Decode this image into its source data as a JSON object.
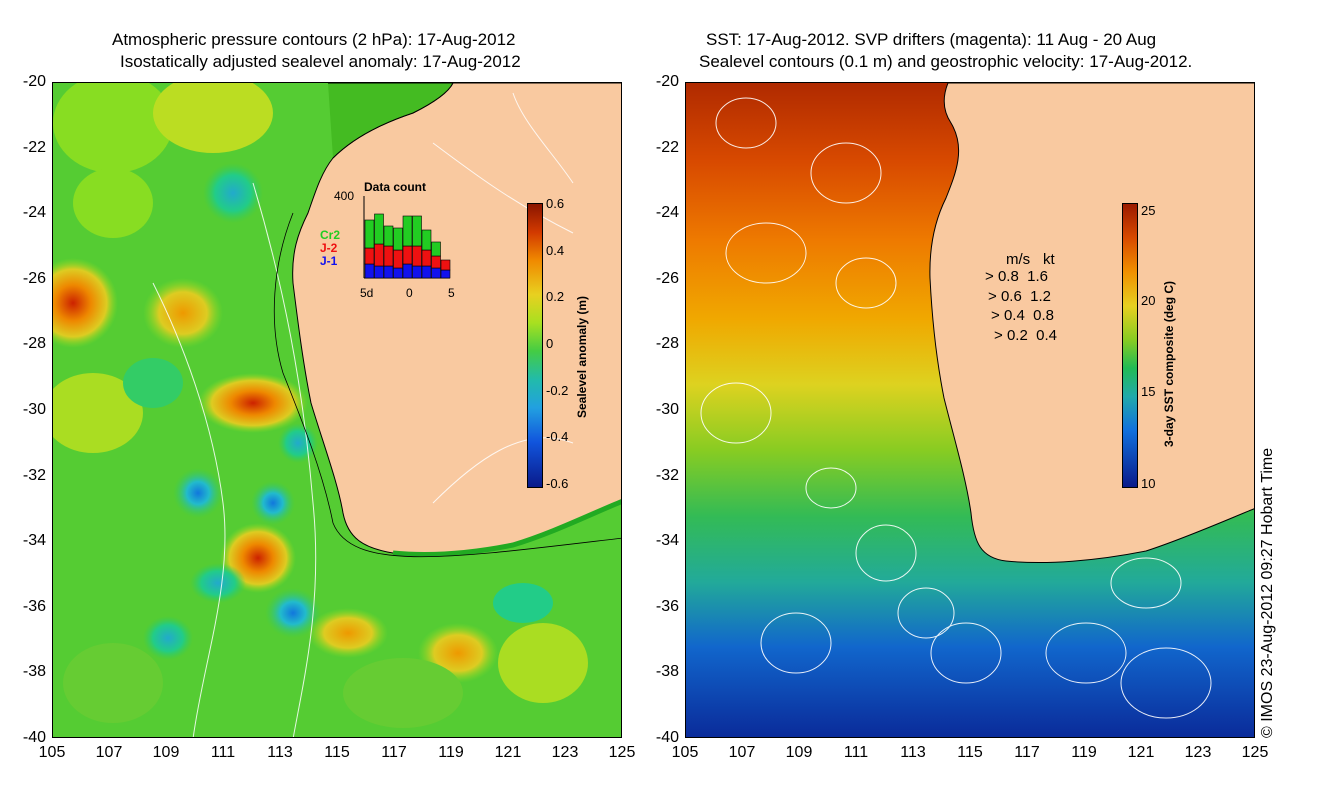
{
  "left_panel": {
    "title_line1": "Atmospheric pressure contours (2 hPa): 17-Aug-2012",
    "title_line2": "Isostatically adjusted sealevel anomaly: 17-Aug-2012",
    "colorbar": {
      "label": "Sealevel anomaly (m)",
      "ticks": [
        "0.6",
        "0.4",
        "0.2",
        "0",
        "-0.2",
        "-0.4",
        "-0.6"
      ]
    },
    "inset": {
      "title": "Data count",
      "ymax_label": "400",
      "x_labels": [
        "5d",
        "0",
        "5"
      ],
      "legend": [
        {
          "name": "Cr2",
          "color": "#22cc22"
        },
        {
          "name": "J-2",
          "color": "#ee1111"
        },
        {
          "name": "J-1",
          "color": "#1111ee"
        }
      ]
    }
  },
  "right_panel": {
    "title_line1": "SST: 17-Aug-2012. SVP drifters (magenta): 11 Aug - 20 Aug",
    "title_line2": "Sealevel contours (0.1 m) and geostrophic velocity: 17-Aug-2012.",
    "colorbar": {
      "label": "3-day SST composite (deg C)",
      "ticks": [
        "25",
        "20",
        "15",
        "10"
      ]
    },
    "velocity_legend": {
      "header_ms": "m/s",
      "header_kt": "kt",
      "rows": [
        {
          "ms": "0.8",
          "kt": "1.6"
        },
        {
          "ms": "0.6",
          "kt": "1.2"
        },
        {
          "ms": "0.4",
          "kt": "0.8"
        },
        {
          "ms": "0.2",
          "kt": "0.4"
        }
      ]
    }
  },
  "axes": {
    "lat_ticks": [
      "-20",
      "-22",
      "-24",
      "-26",
      "-28",
      "-30",
      "-32",
      "-34",
      "-36",
      "-38",
      "-40"
    ],
    "lon_ticks": [
      "105",
      "107",
      "109",
      "111",
      "113",
      "115",
      "117",
      "119",
      "121",
      "123",
      "125"
    ]
  },
  "credit": "© IMOS 23-Aug-2012 09:27 Hobart Time",
  "colors": {
    "land": "#f9c9a0",
    "ocean_mid": "#44cc22",
    "ssh_high": "#cc2200",
    "ssh_low": "#1166cc",
    "sst_warm": "#cc3300",
    "sst_cool": "#0033aa"
  }
}
